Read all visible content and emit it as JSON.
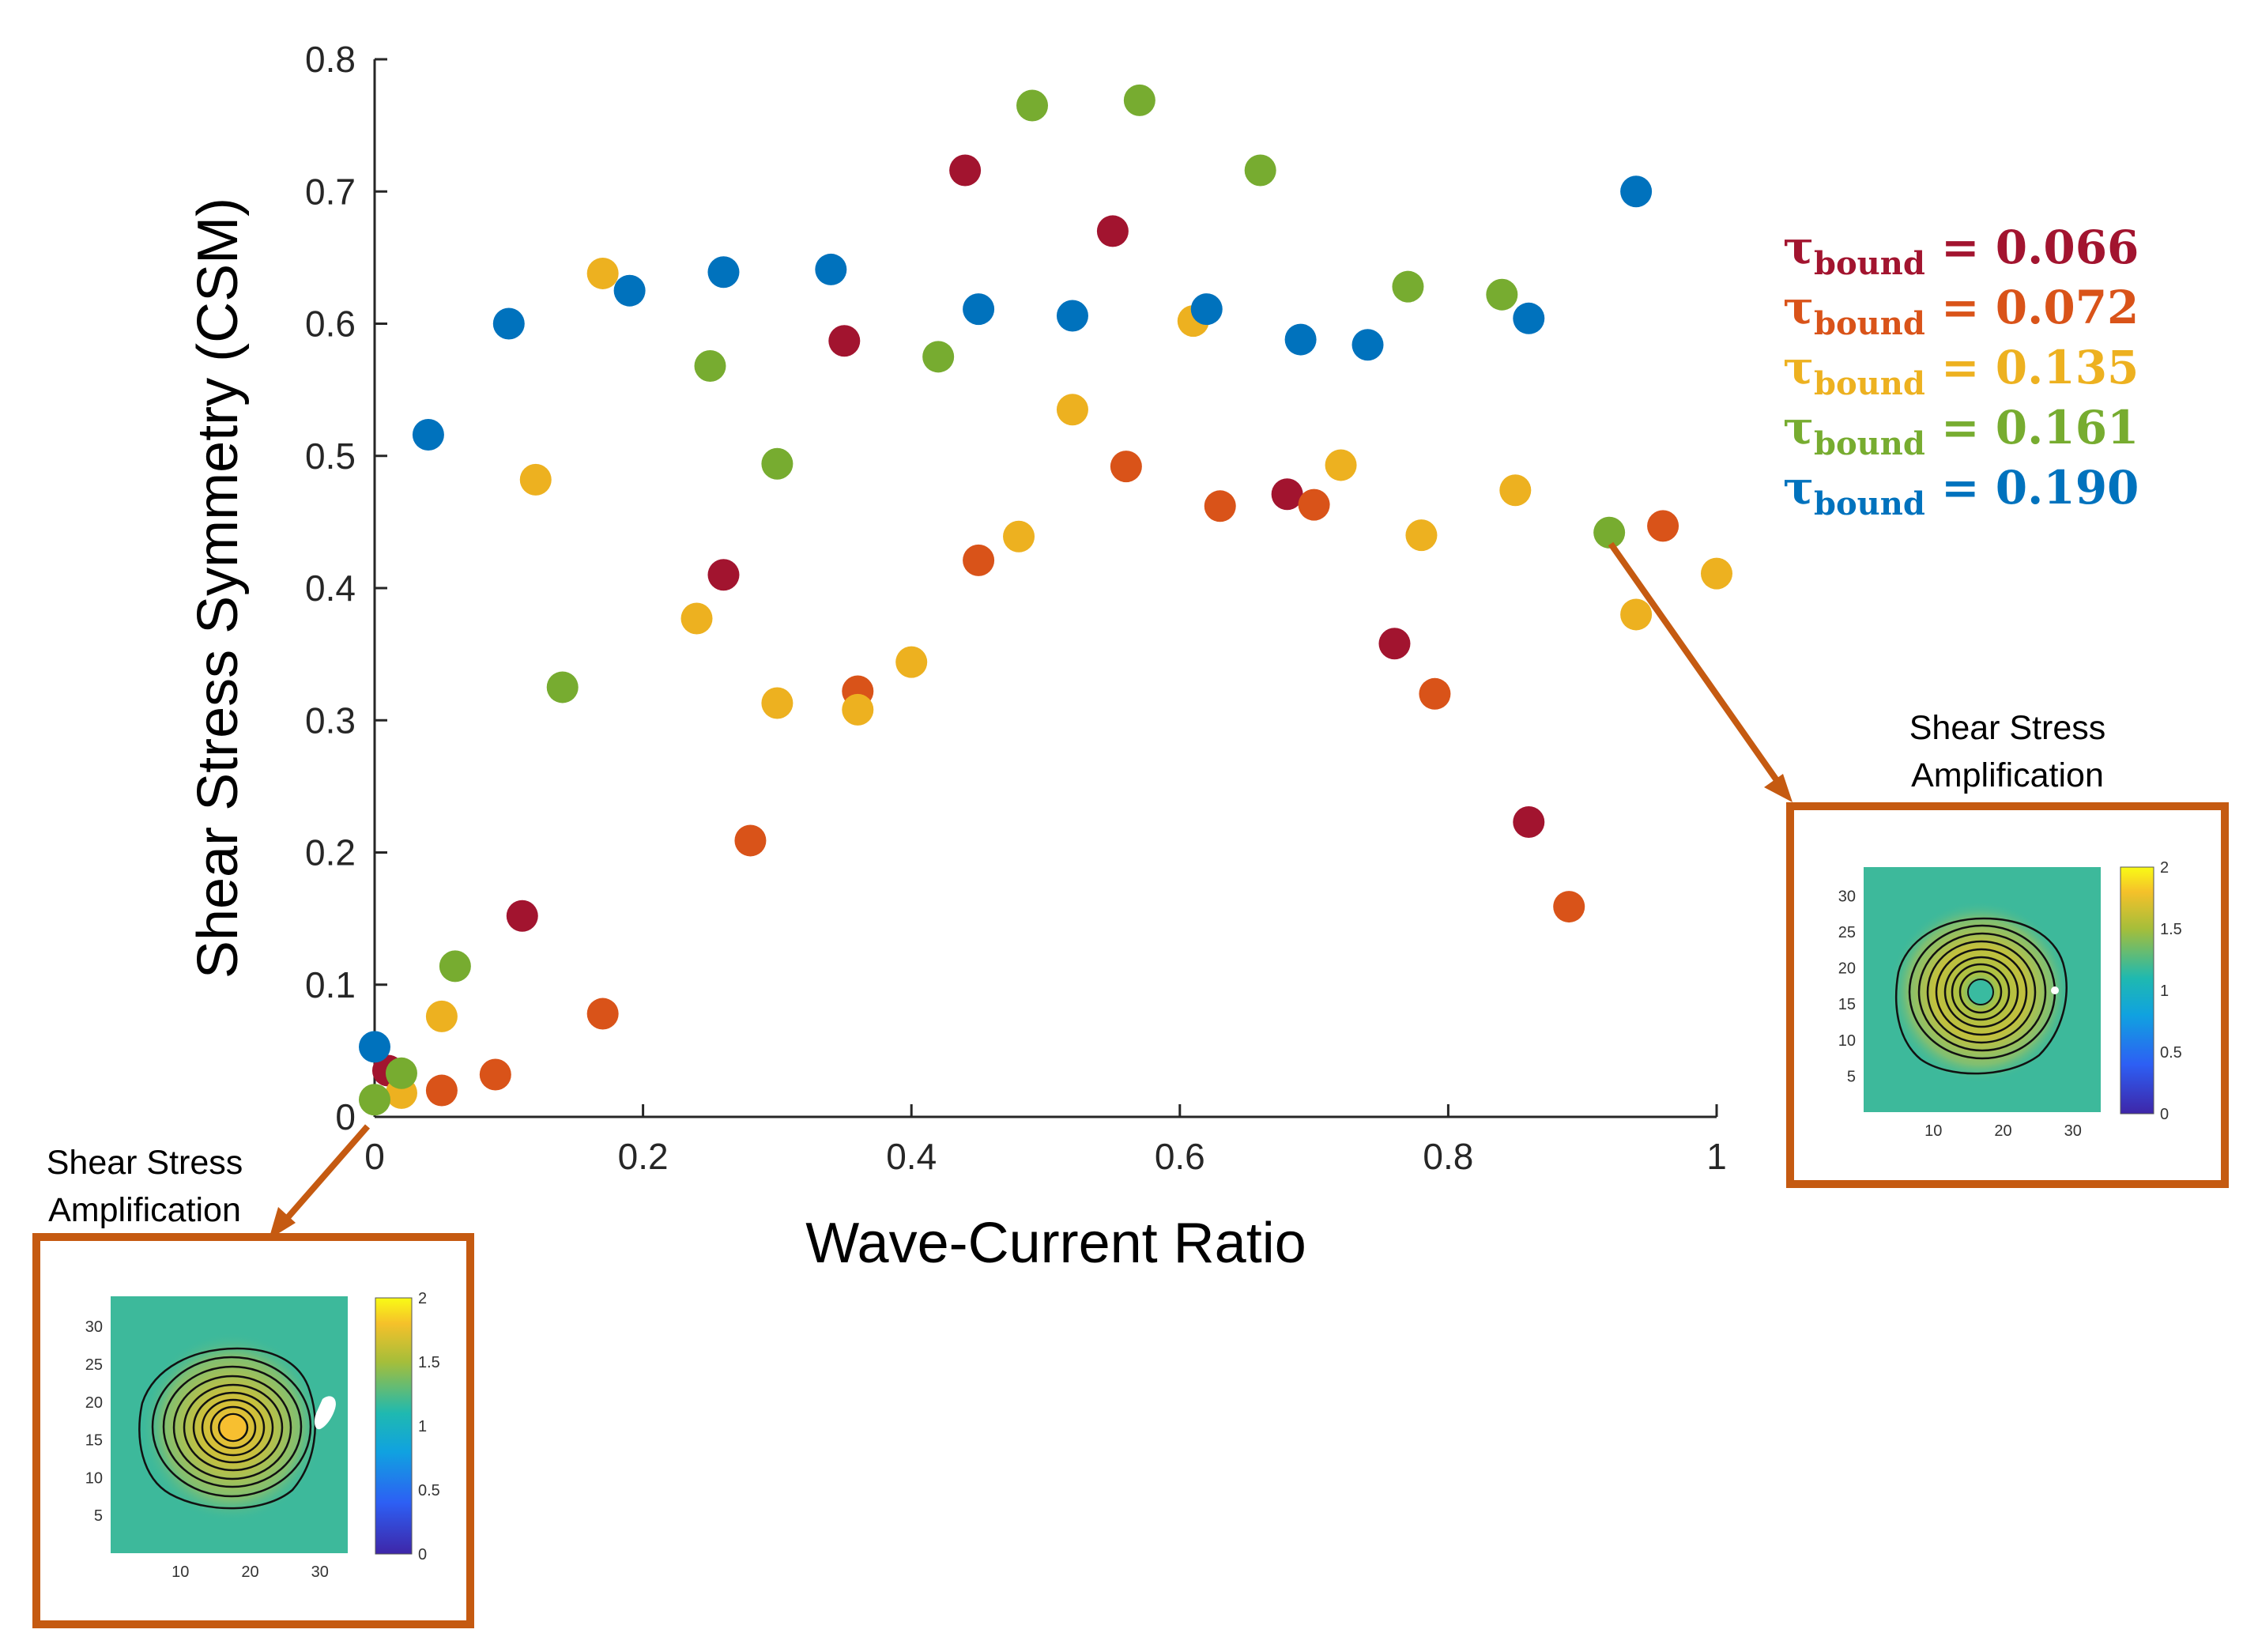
{
  "chart_data": {
    "type": "scatter",
    "title": "",
    "xlabel": "Wave-Current Ratio",
    "ylabel": "Shear Stress Symmetry (CSM)",
    "xlim": [
      0,
      1
    ],
    "ylim": [
      0,
      0.8
    ],
    "x_ticks": [
      "0",
      "0.2",
      "0.4",
      "0.6",
      "0.8",
      "1"
    ],
    "y_ticks": [
      "0",
      "0.1",
      "0.2",
      "0.3",
      "0.4",
      "0.5",
      "0.6",
      "0.7",
      "0.8"
    ],
    "grid": false,
    "legend_position": "top-right",
    "legend_symbol": "τ",
    "legend_subscript": "bound",
    "series": [
      {
        "name": "0.066",
        "color": "#A2142F",
        "points": [
          [
            0.01,
            0.035
          ],
          [
            0.11,
            0.152
          ],
          [
            0.26,
            0.41
          ],
          [
            0.35,
            0.587
          ],
          [
            0.44,
            0.716
          ],
          [
            0.55,
            0.67
          ],
          [
            0.68,
            0.471
          ],
          [
            0.76,
            0.358
          ],
          [
            0.86,
            0.223
          ]
        ]
      },
      {
        "name": "0.072",
        "color": "#D95319",
        "points": [
          [
            0.05,
            0.02
          ],
          [
            0.09,
            0.032
          ],
          [
            0.17,
            0.078
          ],
          [
            0.28,
            0.209
          ],
          [
            0.36,
            0.322
          ],
          [
            0.45,
            0.421
          ],
          [
            0.56,
            0.492
          ],
          [
            0.63,
            0.462
          ],
          [
            0.7,
            0.463
          ],
          [
            0.79,
            0.32
          ],
          [
            0.89,
            0.159
          ],
          [
            0.96,
            0.447
          ]
        ]
      },
      {
        "name": "0.135",
        "color": "#EDB120",
        "points": [
          [
            0.02,
            0.018
          ],
          [
            0.05,
            0.076
          ],
          [
            0.12,
            0.482
          ],
          [
            0.17,
            0.638
          ],
          [
            0.24,
            0.377
          ],
          [
            0.3,
            0.313
          ],
          [
            0.36,
            0.308
          ],
          [
            0.4,
            0.344
          ],
          [
            0.48,
            0.439
          ],
          [
            0.52,
            0.535
          ],
          [
            0.61,
            0.602
          ],
          [
            0.72,
            0.493
          ],
          [
            0.78,
            0.44
          ],
          [
            0.85,
            0.474
          ],
          [
            0.94,
            0.38
          ],
          [
            1.0,
            0.411
          ]
        ]
      },
      {
        "name": "0.161",
        "color": "#77AC30",
        "points": [
          [
            0.0,
            0.013
          ],
          [
            0.02,
            0.033
          ],
          [
            0.06,
            0.114
          ],
          [
            0.14,
            0.325
          ],
          [
            0.25,
            0.568
          ],
          [
            0.3,
            0.494
          ],
          [
            0.42,
            0.575
          ],
          [
            0.49,
            0.765
          ],
          [
            0.57,
            0.769
          ],
          [
            0.66,
            0.716
          ],
          [
            0.77,
            0.628
          ],
          [
            0.84,
            0.622
          ],
          [
            0.92,
            0.442
          ]
        ]
      },
      {
        "name": "0.190",
        "color": "#0072BD",
        "points": [
          [
            0.0,
            0.053
          ],
          [
            0.04,
            0.516
          ],
          [
            0.1,
            0.6
          ],
          [
            0.19,
            0.625
          ],
          [
            0.26,
            0.639
          ],
          [
            0.34,
            0.641
          ],
          [
            0.45,
            0.611
          ],
          [
            0.52,
            0.606
          ],
          [
            0.62,
            0.611
          ],
          [
            0.69,
            0.588
          ],
          [
            0.74,
            0.584
          ],
          [
            0.86,
            0.604
          ],
          [
            0.94,
            0.7
          ]
        ]
      }
    ],
    "legend_values": [
      "0.066",
      "0.072",
      "0.135",
      "0.161",
      "0.190"
    ],
    "insets": [
      {
        "label": "Shear Stress Amplification",
        "axis_ticks_y": [
          "30",
          "25",
          "20",
          "15",
          "10",
          "5"
        ],
        "axis_ticks_x": [
          "10",
          "20",
          "30"
        ],
        "colorbar_ticks": [
          "2",
          "1.5",
          "1",
          "0.5",
          "0"
        ]
      },
      {
        "label": "Shear Stress Amplification",
        "axis_ticks_y": [
          "30",
          "25",
          "20",
          "15",
          "10",
          "5"
        ],
        "axis_ticks_x": [
          "10",
          "20",
          "30"
        ],
        "colorbar_ticks": [
          "2",
          "1.5",
          "1",
          "0.5",
          "0"
        ]
      }
    ],
    "annotation_color": "#C55A11"
  }
}
